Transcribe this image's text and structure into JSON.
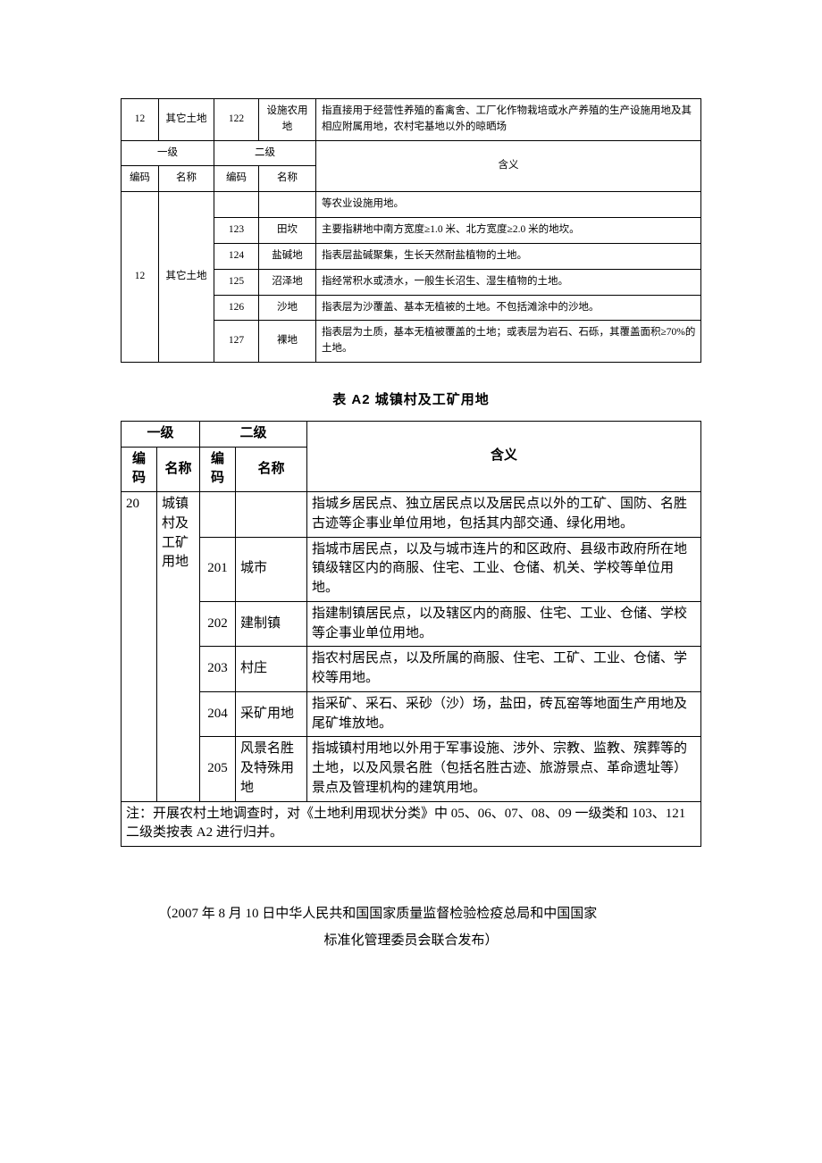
{
  "table1": {
    "headers": {
      "level1": "一级",
      "level2": "二级",
      "code": "编码",
      "name": "名称",
      "definition": "含义"
    },
    "top_row": {
      "l1_code": "12",
      "l1_name": "其它土地",
      "l2_code": "122",
      "l2_name": "设施农用地",
      "def": "指直接用于经营性养殖的畜禽舍、工厂化作物栽培或水产养殖的生产设施用地及其相应附属用地，农村宅基地以外的晾晒场"
    },
    "group_l1_code": "12",
    "group_l1_name": "其它土地",
    "child_rows": [
      {
        "l2_code": "",
        "l2_name": "",
        "def": "等农业设施用地。"
      },
      {
        "l2_code": "123",
        "l2_name": "田坎",
        "def": "主要指耕地中南方宽度≥1.0 米、北方宽度≥2.0 米的地坎。"
      },
      {
        "l2_code": "124",
        "l2_name": "盐碱地",
        "def": "指表层盐碱聚集，生长天然耐盐植物的土地。"
      },
      {
        "l2_code": "125",
        "l2_name": "沼泽地",
        "def": "指经常积水或渍水，一般生长沼生、湿生植物的土地。"
      },
      {
        "l2_code": "126",
        "l2_name": "沙地",
        "def": "指表层为沙覆盖、基本无植被的土地。不包括滩涂中的沙地。"
      },
      {
        "l2_code": "127",
        "l2_name": "裸地",
        "def": "指表层为土质，基本无植被覆盖的土地；或表层为岩石、石砾，其覆盖面积≥70%的土地。"
      }
    ]
  },
  "table2": {
    "title": "表 A2 城镇村及工矿用地",
    "headers": {
      "level1": "一级",
      "level2": "二级",
      "code": "编码",
      "name": "名称",
      "definition": "含义"
    },
    "l1_code": "20",
    "l1_name": "城镇村及工矿用地",
    "rows": [
      {
        "l2_code": "",
        "l2_name": "",
        "def": "指城乡居民点、独立居民点以及居民点以外的工矿、国防、名胜古迹等企事业单位用地，包括其内部交通、绿化用地。"
      },
      {
        "l2_code": "201",
        "l2_name": "城市",
        "def": "指城市居民点，以及与城市连片的和区政府、县级市政府所在地镇级辖区内的商服、住宅、工业、仓储、机关、学校等单位用地。"
      },
      {
        "l2_code": "202",
        "l2_name": "建制镇",
        "def": "指建制镇居民点，以及辖区内的商服、住宅、工业、仓储、学校等企事业单位用地。"
      },
      {
        "l2_code": "203",
        "l2_name": "村庄",
        "def": "指农村居民点，以及所属的商服、住宅、工矿、工业、仓储、学校等用地。"
      },
      {
        "l2_code": "204",
        "l2_name": "采矿用地",
        "def": "指采矿、采石、采砂（沙）场，盐田，砖瓦窑等地面生产用地及尾矿堆放地。"
      },
      {
        "l2_code": "205",
        "l2_name": "风景名胜及特殊用地",
        "def": "指城镇村用地以外用于军事设施、涉外、宗教、监教、殡葬等的土地，以及风景名胜（包括名胜古迹、旅游景点、革命遗址等）景点及管理机构的建筑用地。"
      }
    ],
    "note": "注：开展农村土地调查时，对《土地利用现状分类》中 05、06、07、08、09 一级类和 103、121 二级类按表 A2 进行归并。"
  },
  "footer": {
    "line1": "（2007 年 8 月 10 日中华人民共和国国家质量监督检验检疫总局和中国国家",
    "line2": "标准化管理委员会联合发布）"
  },
  "colors": {
    "border": "#000000",
    "text": "#000000",
    "background": "#ffffff"
  }
}
